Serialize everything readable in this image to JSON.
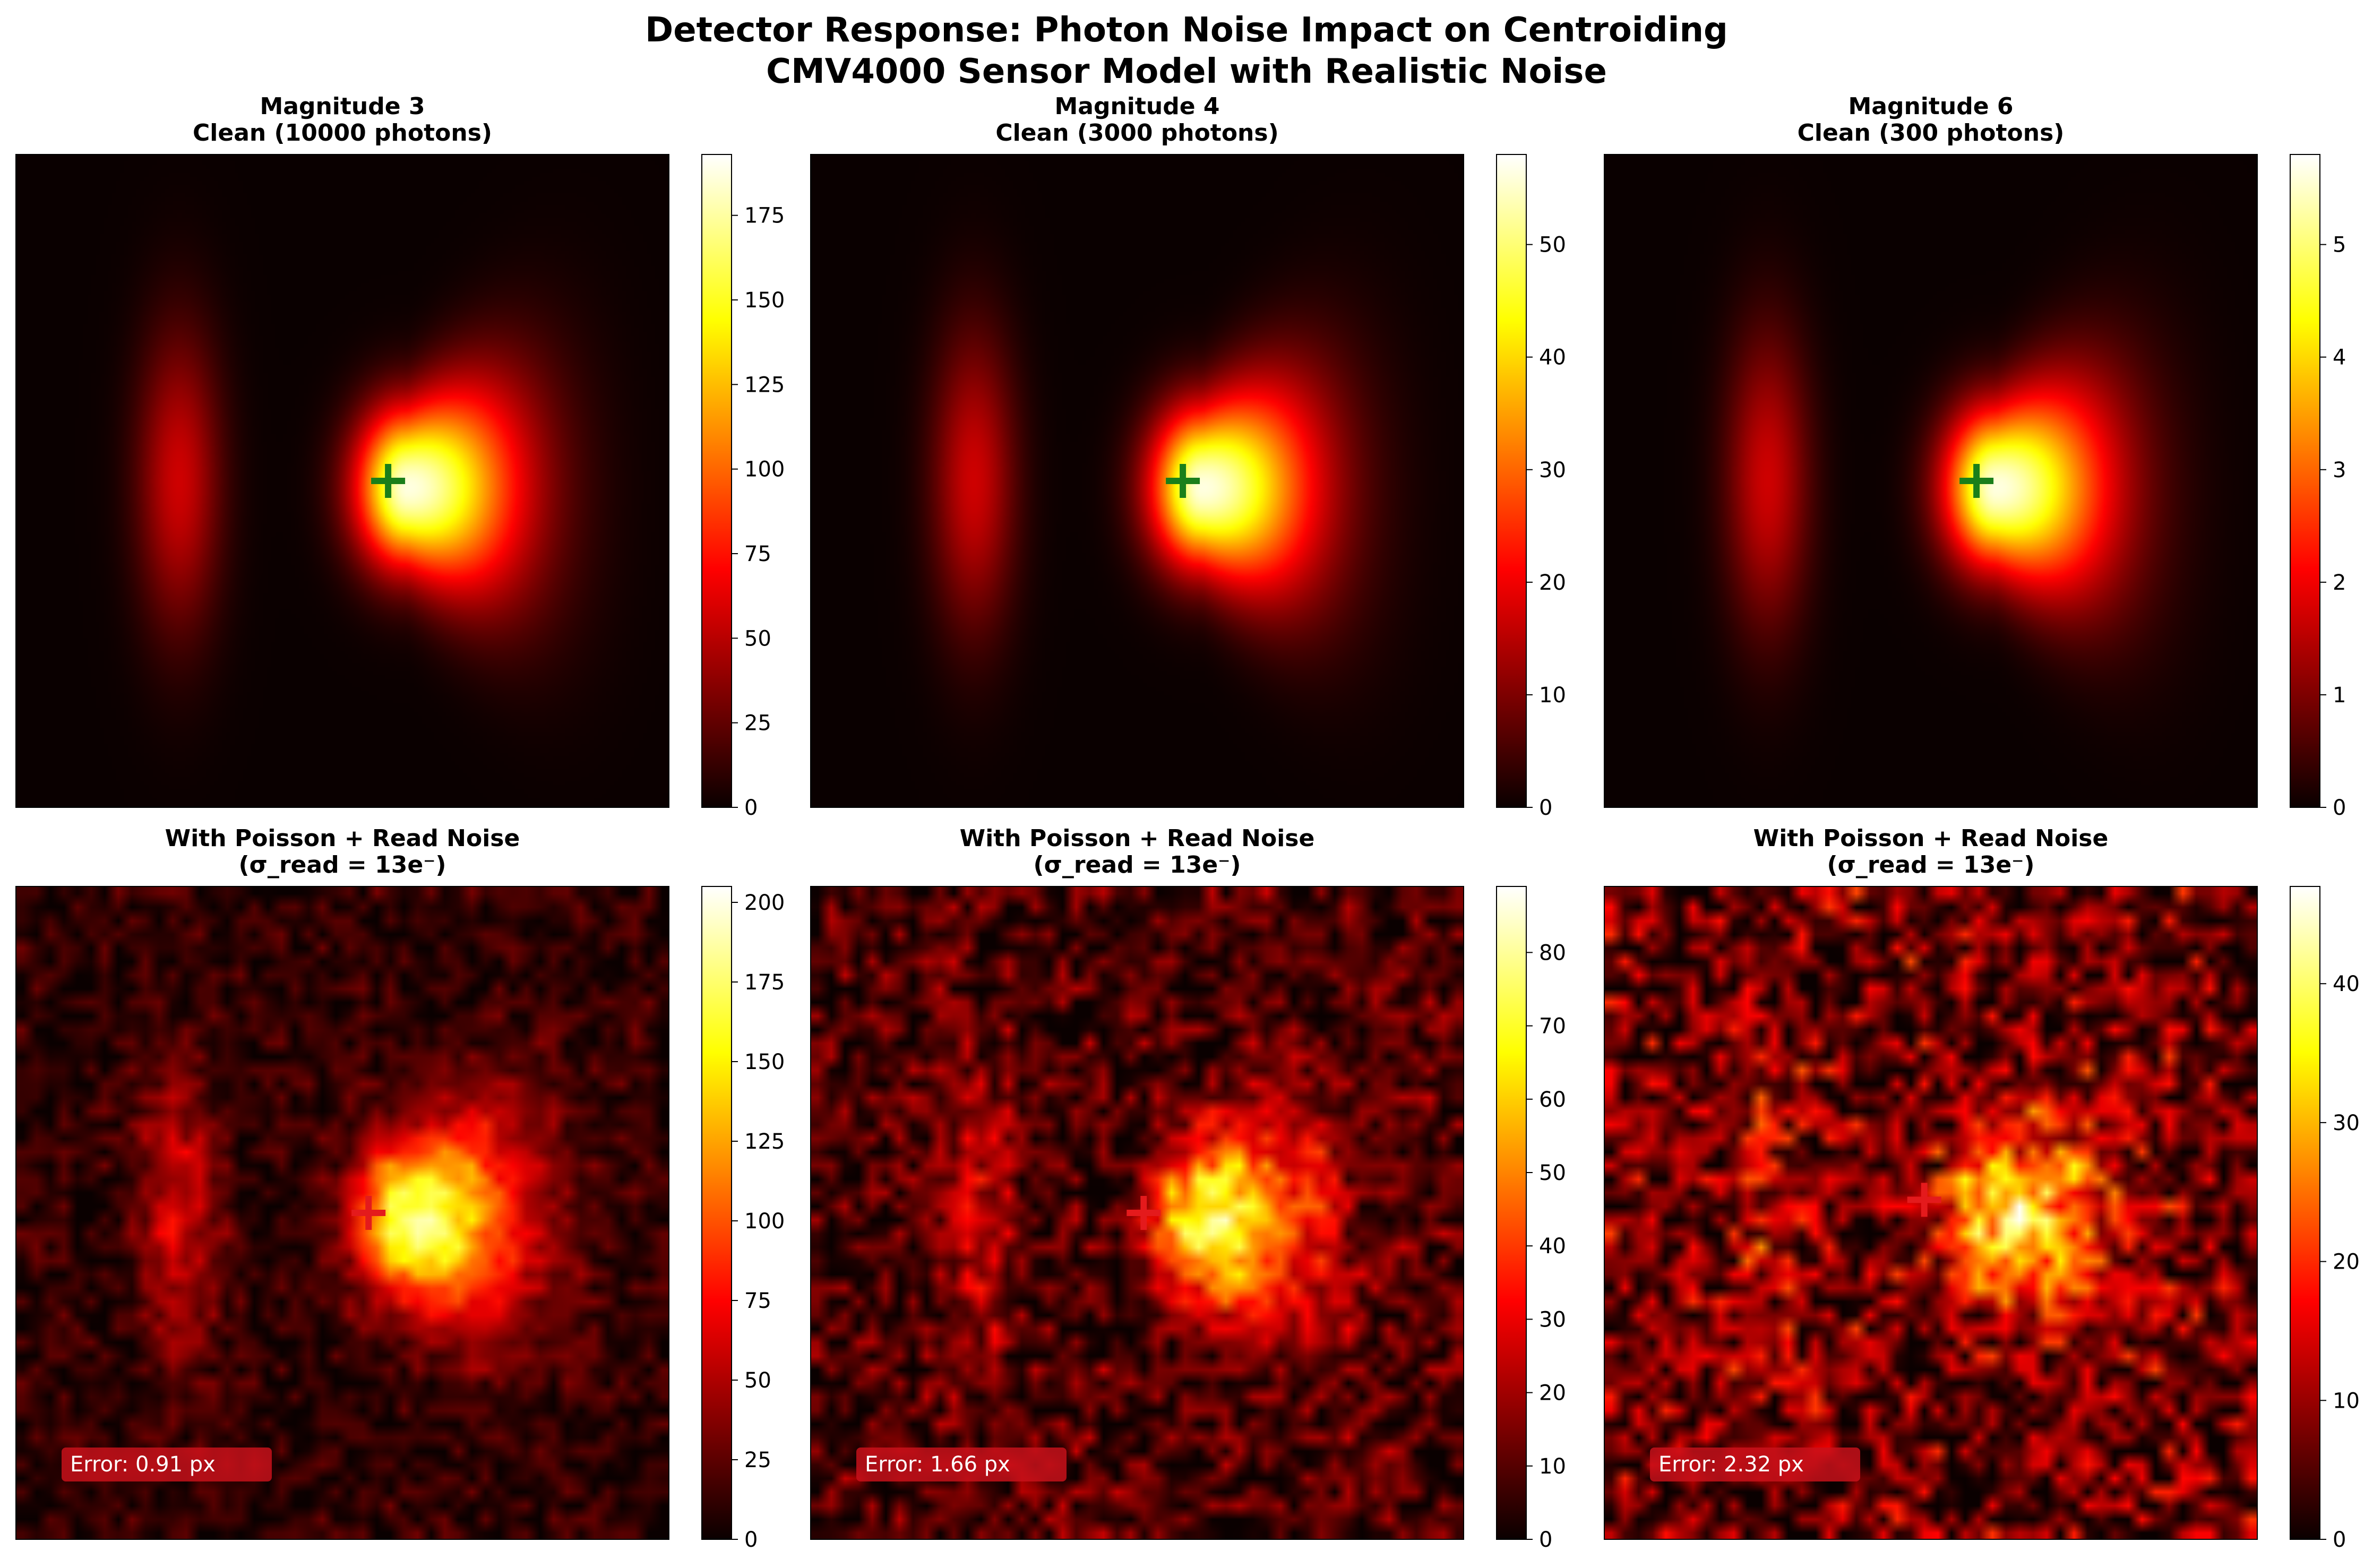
{
  "figure": {
    "title_line1": "Detector Response: Photon Noise Impact on Centroiding",
    "title_line2": "CMV4000 Sensor Model with Realistic Noise"
  },
  "colors": {
    "background": "#ffffff",
    "colormap": "hot",
    "clean_marker": "#1a7f1a",
    "noisy_marker": "#e41a1c",
    "error_box": "#c8101a",
    "error_text": "#ffffff"
  },
  "chart_data": [
    {
      "type": "heatmap",
      "id": "m3-clean",
      "title_line1": "Magnitude 3",
      "title_line2": "Clean (10000 photons)",
      "variant": "clean",
      "vmin": 0,
      "vmax": 193,
      "colorbar_ticks": [
        0,
        25,
        50,
        75,
        100,
        125,
        150,
        175
      ],
      "centroid_marker": {
        "x": 0.57,
        "y": 0.5,
        "color": "green"
      },
      "error_label": ""
    },
    {
      "type": "heatmap",
      "id": "m4-clean",
      "title_line1": "Magnitude 4",
      "title_line2": "Clean (3000 photons)",
      "variant": "clean",
      "vmin": 0,
      "vmax": 58,
      "colorbar_ticks": [
        0,
        10,
        20,
        30,
        40,
        50
      ],
      "centroid_marker": {
        "x": 0.57,
        "y": 0.5,
        "color": "green"
      },
      "error_label": ""
    },
    {
      "type": "heatmap",
      "id": "m6-clean",
      "title_line1": "Magnitude 6",
      "title_line2": "Clean (300 photons)",
      "variant": "clean",
      "vmin": 0,
      "vmax": 5.8,
      "colorbar_ticks": [
        0,
        1,
        2,
        3,
        4,
        5
      ],
      "centroid_marker": {
        "x": 0.57,
        "y": 0.5,
        "color": "green"
      },
      "error_label": ""
    },
    {
      "type": "heatmap",
      "id": "m3-noisy",
      "title_line1": "With Poisson + Read Noise",
      "title_line2": "(σ_read = 13e⁻)",
      "variant": "noisy",
      "noise_level": 0.25,
      "vmin": 0,
      "vmax": 205,
      "colorbar_ticks": [
        0,
        25,
        50,
        75,
        100,
        125,
        150,
        175,
        200
      ],
      "centroid_marker": {
        "x": 0.54,
        "y": 0.5,
        "color": "red"
      },
      "error_label": "Error: 0.91 px"
    },
    {
      "type": "heatmap",
      "id": "m4-noisy",
      "title_line1": "With Poisson + Read Noise",
      "title_line2": "(σ_read = 13e⁻)",
      "variant": "noisy",
      "noise_level": 0.45,
      "vmin": 0,
      "vmax": 89,
      "colorbar_ticks": [
        0,
        10,
        20,
        30,
        40,
        50,
        60,
        70,
        80
      ],
      "centroid_marker": {
        "x": 0.51,
        "y": 0.5,
        "color": "red"
      },
      "error_label": "Error: 1.66 px"
    },
    {
      "type": "heatmap",
      "id": "m6-noisy",
      "title_line1": "With Poisson + Read Noise",
      "title_line2": "(σ_read = 13e⁻)",
      "variant": "noisy",
      "noise_level": 0.7,
      "vmin": 0,
      "vmax": 47,
      "colorbar_ticks": [
        0,
        10,
        20,
        30,
        40
      ],
      "centroid_marker": {
        "x": 0.49,
        "y": 0.48,
        "color": "red"
      },
      "error_label": "Error: 2.32 px"
    }
  ]
}
